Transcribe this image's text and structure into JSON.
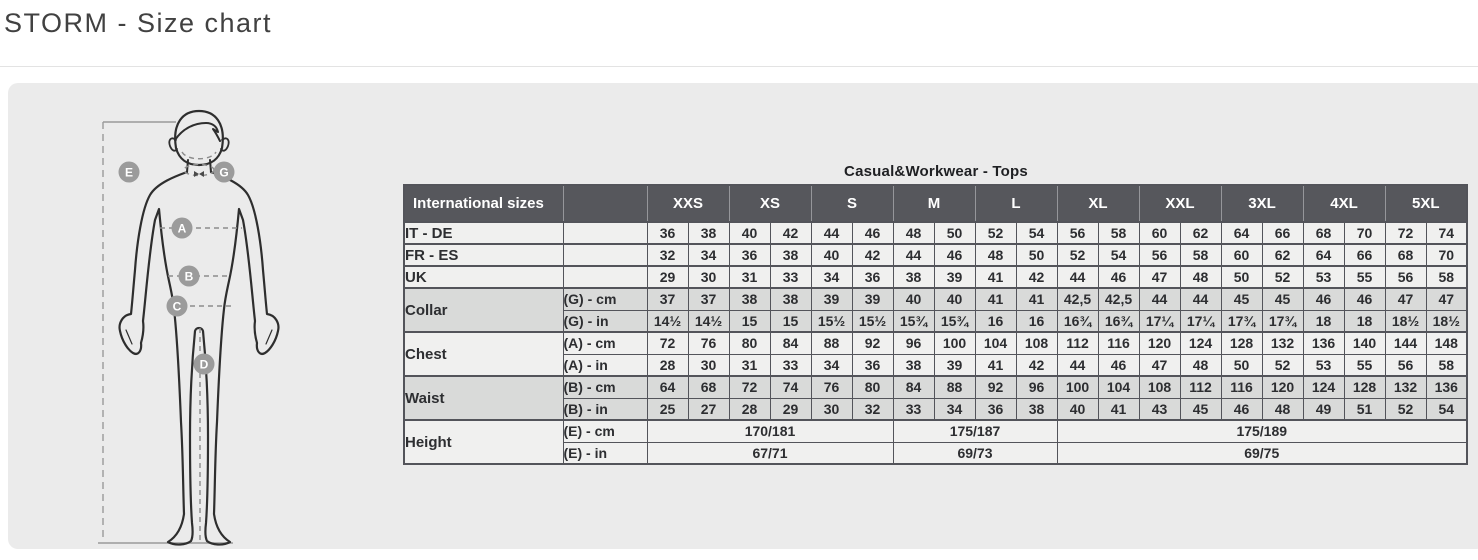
{
  "page": {
    "title": "STORM - Size chart"
  },
  "diagram": {
    "markers": [
      "E",
      "G",
      "A",
      "B",
      "C",
      "D"
    ]
  },
  "table": {
    "caption": "Casual&Workwear - Tops",
    "corner_label": "International sizes",
    "sizes": [
      "XXS",
      "XS",
      "S",
      "M",
      "L",
      "XL",
      "XXL",
      "3XL",
      "4XL",
      "5XL"
    ],
    "row_groups": [
      {
        "label": "IT - DE",
        "shade": "light",
        "rows": [
          {
            "sub": "",
            "cells": [
              "36",
              "38",
              "40",
              "42",
              "44",
              "46",
              "48",
              "50",
              "52",
              "54",
              "56",
              "58",
              "60",
              "62",
              "64",
              "66",
              "68",
              "70",
              "72",
              "74"
            ]
          }
        ]
      },
      {
        "label": "FR - ES",
        "shade": "light",
        "rows": [
          {
            "sub": "",
            "cells": [
              "32",
              "34",
              "36",
              "38",
              "40",
              "42",
              "44",
              "46",
              "48",
              "50",
              "52",
              "54",
              "56",
              "58",
              "60",
              "62",
              "64",
              "66",
              "68",
              "70"
            ]
          }
        ]
      },
      {
        "label": "UK",
        "shade": "light",
        "rows": [
          {
            "sub": "",
            "cells": [
              "29",
              "30",
              "31",
              "33",
              "34",
              "36",
              "38",
              "39",
              "41",
              "42",
              "44",
              "46",
              "47",
              "48",
              "50",
              "52",
              "53",
              "55",
              "56",
              "58"
            ]
          }
        ]
      },
      {
        "label": "Collar",
        "shade": "gray",
        "rows": [
          {
            "sub": "(G) - cm",
            "cells": [
              "37",
              "37",
              "38",
              "38",
              "39",
              "39",
              "40",
              "40",
              "41",
              "41",
              "42,5",
              "42,5",
              "44",
              "44",
              "45",
              "45",
              "46",
              "46",
              "47",
              "47"
            ]
          },
          {
            "sub": "(G) - in",
            "cells": [
              "14½",
              "14½",
              "15",
              "15",
              "15½",
              "15½",
              "15¾",
              "15¾",
              "16",
              "16",
              "16¾",
              "16¾",
              "17¼",
              "17¼",
              "17¾",
              "17¾",
              "18",
              "18",
              "18½",
              "18½"
            ]
          }
        ]
      },
      {
        "label": "Chest",
        "shade": "light",
        "rows": [
          {
            "sub": "(A) - cm",
            "cells": [
              "72",
              "76",
              "80",
              "84",
              "88",
              "92",
              "96",
              "100",
              "104",
              "108",
              "112",
              "116",
              "120",
              "124",
              "128",
              "132",
              "136",
              "140",
              "144",
              "148"
            ]
          },
          {
            "sub": "(A) - in",
            "cells": [
              "28",
              "30",
              "31",
              "33",
              "34",
              "36",
              "38",
              "39",
              "41",
              "42",
              "44",
              "46",
              "47",
              "48",
              "50",
              "52",
              "53",
              "55",
              "56",
              "58"
            ]
          }
        ]
      },
      {
        "label": "Waist",
        "shade": "gray",
        "rows": [
          {
            "sub": "(B) - cm",
            "cells": [
              "64",
              "68",
              "72",
              "74",
              "76",
              "80",
              "84",
              "88",
              "92",
              "96",
              "100",
              "104",
              "108",
              "112",
              "116",
              "120",
              "124",
              "128",
              "132",
              "136"
            ]
          },
          {
            "sub": "(B) - in",
            "cells": [
              "25",
              "27",
              "28",
              "29",
              "30",
              "32",
              "33",
              "34",
              "36",
              "38",
              "40",
              "41",
              "43",
              "45",
              "46",
              "48",
              "49",
              "51",
              "52",
              "54"
            ]
          }
        ]
      },
      {
        "label": "Height",
        "shade": "light",
        "rows": [
          {
            "sub": "(E) - cm",
            "spans": [
              {
                "cols": 6,
                "text": "170/181"
              },
              {
                "cols": 4,
                "text": "175/187"
              },
              {
                "cols": 10,
                "text": "175/189"
              }
            ]
          },
          {
            "sub": "(E) - in",
            "spans": [
              {
                "cols": 6,
                "text": "67/71"
              },
              {
                "cols": 4,
                "text": "69/73"
              },
              {
                "cols": 10,
                "text": "69/75"
              }
            ]
          }
        ]
      }
    ]
  },
  "colors": {
    "header_dark": "#56575c",
    "panel_bg": "#ebebeb",
    "row_light": "#f0f0ef",
    "row_gray": "#d9dad9",
    "marker_gray": "#9b9b9b",
    "outline": "#2e2e2e"
  }
}
